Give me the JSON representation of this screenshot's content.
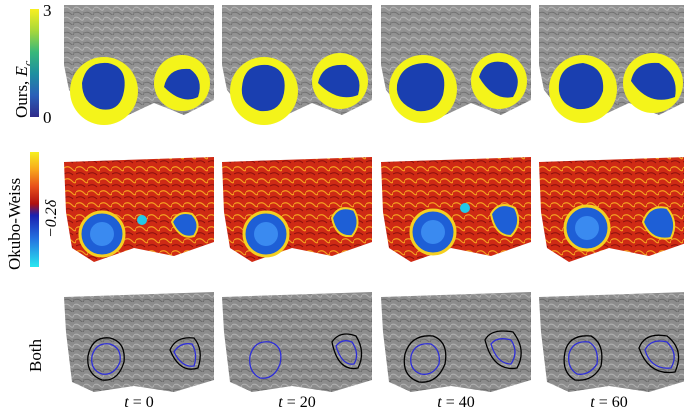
{
  "rows": [
    {
      "label_text": "Ours, ",
      "label_var": "E",
      "label_sub": "c"
    },
    {
      "label_text": "Okubo-Weiss"
    },
    {
      "label_text": "Both"
    }
  ],
  "colorbar_top": {
    "max": "3",
    "min": "0"
  },
  "colorbar_mid": {
    "threshold": "−0.2δ"
  },
  "times": [
    {
      "var": "t",
      "text": " = 0"
    },
    {
      "var": "t",
      "text": " = 20"
    },
    {
      "var": "t",
      "text": " = 40"
    },
    {
      "var": "t",
      "text": " = 60"
    }
  ],
  "colors": {
    "ours_circle": "#f4f41a",
    "ours_vortex": "#1a3fb0",
    "ow_background": "#d42a16",
    "ow_vortex": "#1e5fd6",
    "land_gray": "#8a8a8a",
    "contour_ours": "#2d2dd8",
    "contour_ow": "#000000"
  }
}
